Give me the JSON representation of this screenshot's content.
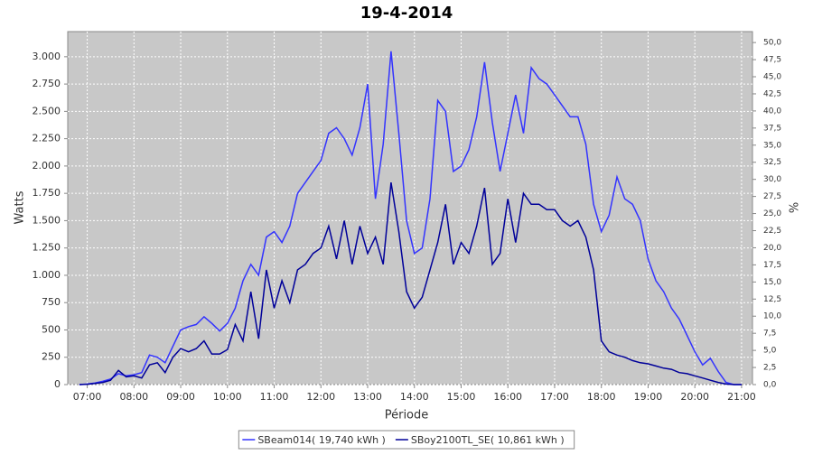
{
  "chart_data": {
    "type": "line",
    "title": "19-4-2014",
    "x_label": "Période",
    "y_label": "Watts",
    "y2_label": "%",
    "x": [
      "06:50",
      "07:00",
      "07:10",
      "07:20",
      "07:30",
      "07:40",
      "07:50",
      "08:00",
      "08:10",
      "08:20",
      "08:30",
      "08:40",
      "08:50",
      "09:00",
      "09:10",
      "09:20",
      "09:30",
      "09:40",
      "09:50",
      "10:00",
      "10:10",
      "10:20",
      "10:30",
      "10:40",
      "10:50",
      "11:00",
      "11:10",
      "11:20",
      "11:30",
      "11:40",
      "11:50",
      "12:00",
      "12:10",
      "12:20",
      "12:30",
      "12:40",
      "12:50",
      "13:00",
      "13:10",
      "13:20",
      "13:30",
      "13:40",
      "13:50",
      "14:00",
      "14:10",
      "14:20",
      "14:30",
      "14:40",
      "14:50",
      "15:00",
      "15:10",
      "15:20",
      "15:30",
      "15:40",
      "15:50",
      "16:00",
      "16:10",
      "16:20",
      "16:30",
      "16:40",
      "16:50",
      "17:00",
      "17:10",
      "17:20",
      "17:30",
      "17:40",
      "17:50",
      "18:00",
      "18:10",
      "18:20",
      "18:30",
      "18:40",
      "18:50",
      "19:00",
      "19:10",
      "19:20",
      "19:30",
      "19:40",
      "19:50",
      "20:00",
      "20:10",
      "20:20",
      "20:30",
      "20:40",
      "20:50",
      "21:00"
    ],
    "series": [
      {
        "name": "SBeam014( 19,740 kWh )",
        "color": "#3333ff",
        "values": [
          0,
          5,
          15,
          30,
          50,
          100,
          80,
          90,
          110,
          270,
          250,
          200,
          350,
          500,
          530,
          550,
          620,
          560,
          490,
          560,
          700,
          950,
          1100,
          1000,
          1350,
          1400,
          1300,
          1450,
          1750,
          1850,
          1950,
          2050,
          2300,
          2350,
          2250,
          2100,
          2350,
          2750,
          1700,
          2200,
          3050,
          2300,
          1500,
          1200,
          1250,
          1700,
          2600,
          2500,
          1950,
          2000,
          2150,
          2450,
          2950,
          2400,
          1950,
          2300,
          2650,
          2300,
          2900,
          2800,
          2750,
          2650,
          2550,
          2450,
          2450,
          2200,
          1650,
          1400,
          1550,
          1900,
          1700,
          1650,
          1500,
          1150,
          950,
          850,
          700,
          600,
          450,
          300,
          180,
          240,
          120,
          20,
          0,
          0
        ]
      },
      {
        "name": "SBoy2100TL_SE( 10,861 kWh )",
        "color": "#000099",
        "values": [
          0,
          3,
          10,
          20,
          40,
          130,
          70,
          80,
          60,
          180,
          200,
          110,
          250,
          330,
          300,
          330,
          400,
          280,
          280,
          320,
          550,
          400,
          850,
          420,
          1050,
          700,
          950,
          750,
          1050,
          1100,
          1200,
          1250,
          1450,
          1150,
          1500,
          1100,
          1450,
          1200,
          1350,
          1100,
          1850,
          1400,
          850,
          700,
          800,
          1050,
          1300,
          1650,
          1100,
          1300,
          1200,
          1450,
          1800,
          1100,
          1200,
          1700,
          1300,
          1750,
          1650,
          1650,
          1600,
          1600,
          1500,
          1450,
          1500,
          1350,
          1050,
          400,
          300,
          270,
          250,
          220,
          200,
          190,
          170,
          150,
          140,
          110,
          100,
          80,
          60,
          40,
          20,
          5,
          0,
          0
        ]
      }
    ],
    "xlim": [
      "06:35",
      "21:14"
    ],
    "xticks": [
      "07:00",
      "08:00",
      "09:00",
      "10:00",
      "11:00",
      "12:00",
      "13:00",
      "14:00",
      "15:00",
      "16:00",
      "17:00",
      "18:00",
      "19:00",
      "20:00",
      "21:00"
    ],
    "ylim": [
      0,
      3230
    ],
    "yticks": [
      0,
      250,
      500,
      750,
      {
        "value": 1000,
        "label": "1.000"
      },
      {
        "value": 1250,
        "label": "1.250"
      },
      {
        "value": 1500,
        "label": "1.500"
      },
      {
        "value": 1750,
        "label": "1.750"
      },
      {
        "value": 2000,
        "label": "2.000"
      },
      {
        "value": 2250,
        "label": "2.250"
      },
      {
        "value": 2500,
        "label": "2.500"
      },
      {
        "value": 2750,
        "label": "2.750"
      },
      {
        "value": 3000,
        "label": "3.000"
      }
    ],
    "y2lim": [
      0,
      51.6
    ],
    "y2ticks": [
      {
        "value": 0,
        "label": "0,0"
      },
      {
        "value": 2.5,
        "label": "2,5"
      },
      {
        "value": 5,
        "label": "5,0"
      },
      {
        "value": 7.5,
        "label": "7,5"
      },
      {
        "value": 10,
        "label": "10,0"
      },
      {
        "value": 12.5,
        "label": "12,5"
      },
      {
        "value": 15,
        "label": "15,0"
      },
      {
        "value": 17.5,
        "label": "17,5"
      },
      {
        "value": 20,
        "label": "20,0"
      },
      {
        "value": 22.5,
        "label": "22,5"
      },
      {
        "value": 25,
        "label": "25,0"
      },
      {
        "value": 27.5,
        "label": "27,5"
      },
      {
        "value": 30,
        "label": "30,0"
      },
      {
        "value": 32.5,
        "label": "32,5"
      },
      {
        "value": 35,
        "label": "35,0"
      },
      {
        "value": 37.5,
        "label": "37,5"
      },
      {
        "value": 40,
        "label": "40,0"
      },
      {
        "value": 42.5,
        "label": "42,5"
      },
      {
        "value": 45,
        "label": "45,0"
      },
      {
        "value": 47.5,
        "label": "47,5"
      },
      {
        "value": 50,
        "label": "50,0"
      }
    ],
    "grid": true,
    "plot_background": "#c8c8c8",
    "legend": "bottom"
  }
}
